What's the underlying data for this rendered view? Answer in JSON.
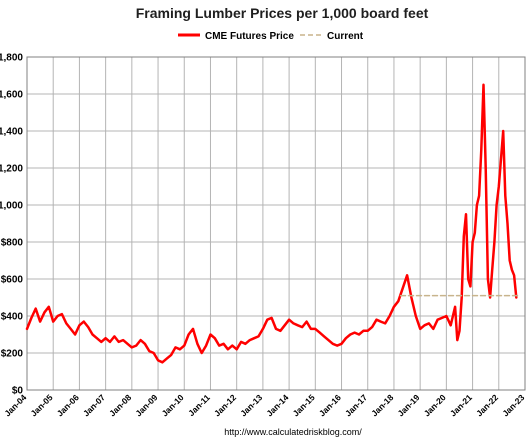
{
  "chart_data": {
    "type": "line",
    "title": "Framing Lumber Prices per 1,000 board feet",
    "xlabel": "",
    "ylabel": "",
    "source": "http://www.calculatedriskblog.com/",
    "ylim": [
      0,
      1800
    ],
    "xlim": [
      2004,
      2023
    ],
    "y_tick_labels": [
      "$0",
      "$200",
      "$400",
      "$600",
      "$800",
      "$1,000",
      "$1,200",
      "$1,400",
      "$1,600",
      "$1,800"
    ],
    "y_tick_values": [
      0,
      200,
      400,
      600,
      800,
      1000,
      1200,
      1400,
      1600,
      1800
    ],
    "x_tick_labels": [
      "Jan-04",
      "Jan-05",
      "Jan-06",
      "Jan-07",
      "Jan-08",
      "Jan-09",
      "Jan-10",
      "Jan-11",
      "Jan-12",
      "Jan-13",
      "Jan-14",
      "Jan-15",
      "Jan-16",
      "Jan-17",
      "Jan-18",
      "Jan-19",
      "Jan-20",
      "Jan-21",
      "Jan-22",
      "Jan-23"
    ],
    "grid": true,
    "legend_position": "top",
    "series": [
      {
        "name": "CME Futures Price",
        "color": "#ff0000",
        "style": "solid",
        "x": [
          "2004-01",
          "2004-03",
          "2004-05",
          "2004-07",
          "2004-09",
          "2004-11",
          "2005-01",
          "2005-03",
          "2005-05",
          "2005-07",
          "2005-09",
          "2005-11",
          "2006-01",
          "2006-03",
          "2006-05",
          "2006-07",
          "2006-09",
          "2006-11",
          "2007-01",
          "2007-03",
          "2007-05",
          "2007-07",
          "2007-09",
          "2007-11",
          "2008-01",
          "2008-03",
          "2008-05",
          "2008-07",
          "2008-09",
          "2008-11",
          "2009-01",
          "2009-03",
          "2009-05",
          "2009-07",
          "2009-09",
          "2009-11",
          "2010-01",
          "2010-03",
          "2010-05",
          "2010-07",
          "2010-09",
          "2010-11",
          "2011-01",
          "2011-03",
          "2011-05",
          "2011-07",
          "2011-09",
          "2011-11",
          "2012-01",
          "2012-03",
          "2012-05",
          "2012-07",
          "2012-09",
          "2012-11",
          "2013-01",
          "2013-03",
          "2013-05",
          "2013-07",
          "2013-09",
          "2013-11",
          "2014-01",
          "2014-03",
          "2014-05",
          "2014-07",
          "2014-09",
          "2014-11",
          "2015-01",
          "2015-03",
          "2015-05",
          "2015-07",
          "2015-09",
          "2015-11",
          "2016-01",
          "2016-03",
          "2016-05",
          "2016-07",
          "2016-09",
          "2016-11",
          "2017-01",
          "2017-03",
          "2017-05",
          "2017-07",
          "2017-09",
          "2017-11",
          "2018-01",
          "2018-03",
          "2018-05",
          "2018-07",
          "2018-09",
          "2018-11",
          "2019-01",
          "2019-03",
          "2019-05",
          "2019-07",
          "2019-09",
          "2019-11",
          "2020-01",
          "2020-03",
          "2020-04",
          "2020-05",
          "2020-06",
          "2020-07",
          "2020-08",
          "2020-09",
          "2020-10",
          "2020-11",
          "2020-12",
          "2021-01",
          "2021-02",
          "2021-03",
          "2021-04",
          "2021-05",
          "2021-06",
          "2021-07",
          "2021-08",
          "2021-09",
          "2021-10",
          "2021-11",
          "2021-12",
          "2022-01",
          "2022-02",
          "2022-03",
          "2022-04",
          "2022-05",
          "2022-06",
          "2022-07",
          "2022-08",
          "2022-09"
        ],
        "y": [
          330,
          390,
          440,
          370,
          420,
          450,
          370,
          400,
          410,
          360,
          330,
          300,
          350,
          370,
          340,
          300,
          280,
          260,
          280,
          260,
          290,
          260,
          270,
          250,
          230,
          240,
          270,
          250,
          210,
          200,
          160,
          150,
          170,
          190,
          230,
          220,
          240,
          300,
          330,
          250,
          200,
          240,
          300,
          280,
          240,
          250,
          220,
          240,
          220,
          260,
          250,
          270,
          280,
          290,
          330,
          380,
          390,
          330,
          320,
          350,
          380,
          360,
          350,
          340,
          370,
          330,
          330,
          310,
          290,
          270,
          250,
          240,
          250,
          280,
          300,
          310,
          300,
          320,
          320,
          340,
          380,
          370,
          360,
          400,
          450,
          480,
          550,
          620,
          500,
          400,
          330,
          350,
          360,
          330,
          380,
          390,
          400,
          350,
          400,
          450,
          270,
          320,
          500,
          830,
          950,
          600,
          560,
          800,
          850,
          1000,
          1050,
          1300,
          1650,
          1200,
          600,
          500,
          650,
          800,
          1000,
          1100,
          1250,
          1400,
          1050,
          900,
          700,
          650,
          620,
          500
        ]
      },
      {
        "name": "Current",
        "color": "#c8b48c",
        "style": "dashed",
        "x": [
          "2018-04",
          "2022-10"
        ],
        "y": [
          510,
          510
        ]
      }
    ]
  }
}
